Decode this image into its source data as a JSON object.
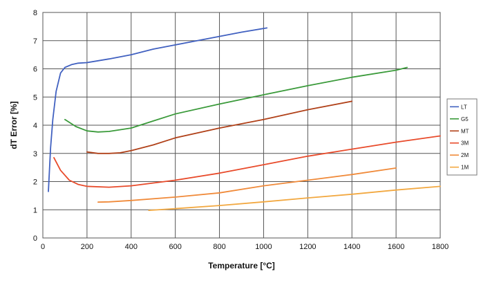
{
  "chart_data": {
    "type": "line",
    "xlabel": "Temperature [°C]",
    "ylabel": "dT Error [%]",
    "xlim": [
      0,
      1800
    ],
    "ylim": [
      0,
      8
    ],
    "xticks": [
      0,
      200,
      400,
      600,
      800,
      1000,
      1200,
      1400,
      1600,
      1800
    ],
    "yticks": [
      0,
      1,
      2,
      3,
      4,
      5,
      6,
      7,
      8
    ],
    "grid": true,
    "legend_position": "right",
    "series": [
      {
        "name": "LT",
        "color": "#4060c0",
        "points": [
          [
            25,
            1.65
          ],
          [
            35,
            3.2
          ],
          [
            45,
            4.2
          ],
          [
            60,
            5.2
          ],
          [
            80,
            5.85
          ],
          [
            100,
            6.05
          ],
          [
            130,
            6.15
          ],
          [
            160,
            6.2
          ],
          [
            200,
            6.22
          ],
          [
            300,
            6.35
          ],
          [
            400,
            6.5
          ],
          [
            500,
            6.7
          ],
          [
            600,
            6.85
          ],
          [
            700,
            7.0
          ],
          [
            800,
            7.15
          ],
          [
            900,
            7.3
          ],
          [
            1015,
            7.45
          ]
        ]
      },
      {
        "name": "G5",
        "color": "#3a9a3a",
        "points": [
          [
            100,
            4.2
          ],
          [
            150,
            3.95
          ],
          [
            200,
            3.8
          ],
          [
            250,
            3.76
          ],
          [
            300,
            3.78
          ],
          [
            400,
            3.9
          ],
          [
            500,
            4.15
          ],
          [
            600,
            4.4
          ],
          [
            800,
            4.75
          ],
          [
            1000,
            5.08
          ],
          [
            1200,
            5.4
          ],
          [
            1400,
            5.7
          ],
          [
            1600,
            5.95
          ],
          [
            1650,
            6.05
          ]
        ]
      },
      {
        "name": "MT",
        "color": "#b04018",
        "points": [
          [
            200,
            3.05
          ],
          [
            250,
            3.0
          ],
          [
            300,
            3.0
          ],
          [
            350,
            3.02
          ],
          [
            400,
            3.1
          ],
          [
            500,
            3.3
          ],
          [
            600,
            3.55
          ],
          [
            800,
            3.9
          ],
          [
            1000,
            4.2
          ],
          [
            1200,
            4.55
          ],
          [
            1400,
            4.85
          ]
        ]
      },
      {
        "name": "3M",
        "color": "#e84a2a",
        "points": [
          [
            50,
            2.85
          ],
          [
            80,
            2.4
          ],
          [
            120,
            2.05
          ],
          [
            160,
            1.9
          ],
          [
            200,
            1.83
          ],
          [
            300,
            1.8
          ],
          [
            400,
            1.85
          ],
          [
            600,
            2.05
          ],
          [
            800,
            2.3
          ],
          [
            1000,
            2.6
          ],
          [
            1200,
            2.9
          ],
          [
            1400,
            3.15
          ],
          [
            1600,
            3.4
          ],
          [
            1800,
            3.62
          ]
        ]
      },
      {
        "name": "2M",
        "color": "#f08a3a",
        "points": [
          [
            250,
            1.27
          ],
          [
            300,
            1.28
          ],
          [
            400,
            1.33
          ],
          [
            600,
            1.45
          ],
          [
            800,
            1.6
          ],
          [
            1000,
            1.85
          ],
          [
            1200,
            2.05
          ],
          [
            1400,
            2.25
          ],
          [
            1600,
            2.48
          ]
        ]
      },
      {
        "name": "1M",
        "color": "#f2a840",
        "points": [
          [
            480,
            0.98
          ],
          [
            600,
            1.04
          ],
          [
            800,
            1.15
          ],
          [
            1000,
            1.28
          ],
          [
            1200,
            1.42
          ],
          [
            1400,
            1.55
          ],
          [
            1600,
            1.7
          ],
          [
            1800,
            1.83
          ]
        ]
      }
    ]
  }
}
